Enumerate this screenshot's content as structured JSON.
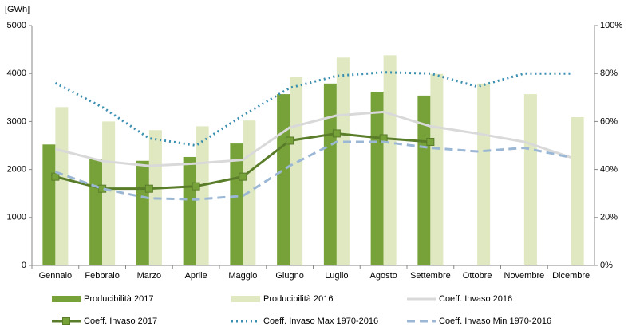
{
  "chart_data": {
    "type": "bar",
    "y_label": "[GWh]",
    "categories": [
      "Gennaio",
      "Febbraio",
      "Marzo",
      "Aprile",
      "Maggio",
      "Giugno",
      "Luglio",
      "Agosto",
      "Settembre",
      "Ottobre",
      "Novembre",
      "Dicembre"
    ],
    "ylim": [
      0,
      5000
    ],
    "yticks": [
      0,
      1000,
      2000,
      3000,
      4000,
      5000
    ],
    "y2lim": [
      0,
      100
    ],
    "y2ticks": [
      {
        "value": 0,
        "label": "0%"
      },
      {
        "value": 20,
        "label": "20%"
      },
      {
        "value": 40,
        "label": "40%"
      },
      {
        "value": 60,
        "label": "60%"
      },
      {
        "value": 80,
        "label": "80%"
      },
      {
        "value": 100,
        "label": "100%"
      }
    ],
    "legend": "bottom",
    "series": [
      {
        "name": "Producibilità 2017",
        "type": "bar",
        "color": "#77a23a",
        "values": [
          2520,
          2210,
          2180,
          2260,
          2540,
          3570,
          3790,
          3620,
          3540,
          null,
          null,
          null
        ]
      },
      {
        "name": "Producibilità 2016",
        "type": "bar",
        "color": "#dfe8c0",
        "values": [
          3300,
          3000,
          2820,
          2900,
          3020,
          3920,
          4330,
          4380,
          3990,
          3790,
          3570,
          3090
        ]
      },
      {
        "name": "Coeff. Invaso 2016",
        "type": "line",
        "axis": "y2",
        "color": "#d9d9d9",
        "dash": "solid",
        "values": [
          48.5,
          43.5,
          41.5,
          42.5,
          44,
          57.5,
          62.5,
          64,
          58,
          55,
          51.5,
          45
        ]
      },
      {
        "name": "Coeff. Invaso 2017",
        "type": "line",
        "axis": "y2",
        "color": "#5a7d2a",
        "dash": "solid",
        "marker": "square",
        "values": [
          37,
          32,
          32,
          33,
          37,
          52,
          55,
          53,
          51.5,
          null,
          null,
          null
        ]
      },
      {
        "name": "Coeff. Invaso Max 1970-2016",
        "type": "line",
        "axis": "y2",
        "color": "#3a8fb0",
        "dash": "dotted",
        "values": [
          76,
          66,
          53,
          50,
          62.5,
          74,
          79,
          80.5,
          80,
          74.5,
          80,
          80
        ]
      },
      {
        "name": "Coeff. Invaso Min 1970-2016",
        "type": "line",
        "axis": "y2",
        "color": "#9bb7d6",
        "dash": "dashed",
        "values": [
          39,
          32,
          28,
          27.5,
          29,
          41.5,
          51.5,
          51.5,
          49,
          47.5,
          49,
          45
        ]
      }
    ]
  }
}
